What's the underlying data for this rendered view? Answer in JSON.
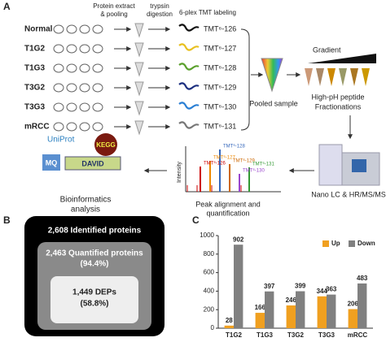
{
  "panel_a": {
    "label": "A",
    "headers": [
      "Protein extract\n& pooling",
      "trypsin\ndigestion",
      "6-plex TMT labeling"
    ],
    "samples": [
      {
        "name": "Normal",
        "tmt": "TMT⁶-126",
        "color": "#111111"
      },
      {
        "name": "T1G2",
        "tmt": "TMT⁶-127",
        "color": "#e8c020"
      },
      {
        "name": "T1G3",
        "tmt": "TMT⁶-128",
        "color": "#5aa02c"
      },
      {
        "name": "T3G2",
        "tmt": "TMT⁶-129",
        "color": "#1c2f80"
      },
      {
        "name": "T3G3",
        "tmt": "TMT⁶-130",
        "color": "#2a7fd4"
      },
      {
        "name": "mRCC",
        "tmt": "TMT⁶-131",
        "color": "#777777"
      }
    ],
    "pooled": "Pooled sample",
    "gradient": "Gradient",
    "fractionation": [
      "High-pH peptide",
      "Fractionations"
    ],
    "instrument": "Nano LC & HR/MS/MS",
    "peak": [
      "Peak alignment and",
      "quantification"
    ],
    "intensity": "Intensity",
    "spectrum_labels": [
      "TMT⁶-126",
      "TMT⁶-127",
      "TMT⁶-128",
      "TMT⁶-129",
      "TMT⁶-130",
      "TMT⁶-131"
    ],
    "bioinformatics": [
      "Bioinformatics",
      "analysis"
    ],
    "logos": [
      "UniProt",
      "KEGG",
      "MQ",
      "DAVID"
    ]
  },
  "panel_b": {
    "label": "B",
    "identified": "2,608 Identified proteins",
    "quantified": [
      "2,463 Quantified proteins",
      "(94.4%)"
    ],
    "deps": [
      "1,449 DEPs",
      "(58.8%)"
    ]
  },
  "chart_data": {
    "type": "bar",
    "label": "C",
    "categories": [
      "T1G2",
      "T1G3",
      "T3G2",
      "T3G3",
      "mRCC"
    ],
    "series": [
      {
        "name": "Up",
        "color": "#f0a020",
        "values": [
          28,
          166,
          246,
          344,
          206
        ]
      },
      {
        "name": "Down",
        "color": "#808080",
        "values": [
          902,
          397,
          399,
          363,
          483
        ]
      }
    ],
    "ylim": [
      0,
      1000
    ],
    "yticks": [
      0,
      200,
      400,
      600,
      800,
      1000
    ],
    "legend": "top-right"
  }
}
